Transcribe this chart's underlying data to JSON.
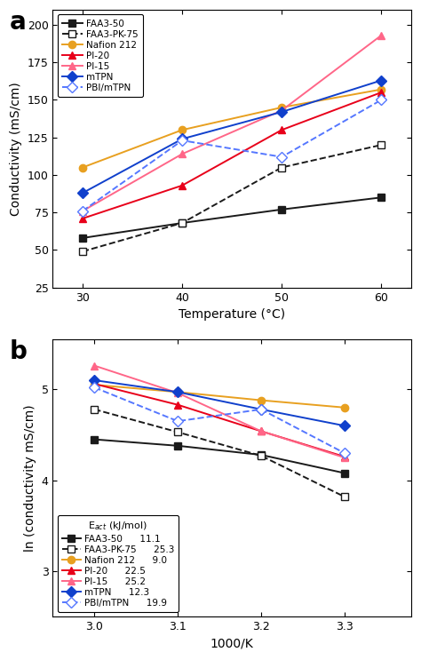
{
  "panel_a": {
    "title": "a",
    "xlabel": "Temperature (°C)",
    "ylabel": "Conductivity (mS/cm)",
    "xlim": [
      27,
      63
    ],
    "ylim": [
      25,
      210
    ],
    "xticks": [
      30,
      40,
      50,
      60
    ],
    "yticks": [
      25,
      50,
      75,
      100,
      125,
      150,
      175,
      200
    ],
    "series": [
      {
        "label": "FAA3-50",
        "color": "#1a1a1a",
        "marker": "s",
        "marker_fill": "#1a1a1a",
        "linestyle": "-",
        "x": [
          30,
          40,
          50,
          60
        ],
        "y": [
          58,
          68,
          77,
          85
        ]
      },
      {
        "label": "FAA3-PK-75",
        "color": "#1a1a1a",
        "marker": "s",
        "marker_fill": "white",
        "linestyle": "--",
        "x": [
          30,
          40,
          50,
          60
        ],
        "y": [
          49,
          68,
          105,
          120
        ]
      },
      {
        "label": "Nafion 212",
        "color": "#E8A020",
        "marker": "o",
        "marker_fill": "#E8A020",
        "linestyle": "-",
        "x": [
          30,
          40,
          50,
          60
        ],
        "y": [
          105,
          130,
          145,
          157
        ]
      },
      {
        "label": "PI-20",
        "color": "#E8001A",
        "marker": "^",
        "marker_fill": "#E8001A",
        "linestyle": "-",
        "x": [
          30,
          40,
          50,
          60
        ],
        "y": [
          71,
          93,
          130,
          155
        ]
      },
      {
        "label": "PI-15",
        "color": "#FF6688",
        "marker": "^",
        "marker_fill": "#FF6688",
        "linestyle": "-",
        "x": [
          30,
          40,
          50,
          60
        ],
        "y": [
          76,
          114,
          143,
          193
        ]
      },
      {
        "label": "mTPN",
        "color": "#1040CC",
        "marker": "D",
        "marker_fill": "#1040CC",
        "linestyle": "-",
        "x": [
          30,
          40,
          50,
          60
        ],
        "y": [
          88,
          124,
          142,
          163
        ]
      },
      {
        "label": "PBI/mTPN",
        "color": "#5577FF",
        "marker": "D",
        "marker_fill": "white",
        "linestyle": "--",
        "x": [
          30,
          40,
          50,
          60
        ],
        "y": [
          76,
          123,
          112,
          150
        ]
      }
    ]
  },
  "panel_b": {
    "title": "b",
    "xlabel": "1000/K",
    "ylabel": "ln (conductivity mS/cm)",
    "xlim": [
      2.95,
      3.38
    ],
    "ylim": [
      2.5,
      5.55
    ],
    "xticks": [
      3.0,
      3.1,
      3.2,
      3.3
    ],
    "yticks": [
      3.0,
      4.0,
      5.0
    ],
    "legend_title": "E$_{act}$ (kJ/mol)",
    "series": [
      {
        "label": "FAA3-50",
        "eact": "11.1",
        "color": "#1a1a1a",
        "marker": "s",
        "marker_fill": "#1a1a1a",
        "linestyle": "-",
        "x": [
          3.0,
          3.1,
          3.2,
          3.3
        ],
        "y": [
          4.45,
          4.38,
          4.28,
          4.08
        ]
      },
      {
        "label": "FAA3-PK-75",
        "eact": "25.3",
        "color": "#1a1a1a",
        "marker": "s",
        "marker_fill": "white",
        "linestyle": "--",
        "x": [
          3.0,
          3.1,
          3.2,
          3.3
        ],
        "y": [
          4.78,
          4.53,
          4.27,
          3.82
        ]
      },
      {
        "label": "Nafion 212",
        "eact": "9.0",
        "color": "#E8A020",
        "marker": "o",
        "marker_fill": "#E8A020",
        "linestyle": "-",
        "x": [
          3.0,
          3.1,
          3.2,
          3.3
        ],
        "y": [
          5.05,
          4.97,
          4.88,
          4.8
        ]
      },
      {
        "label": "PI-20",
        "eact": "22.5",
        "color": "#E8001A",
        "marker": "^",
        "marker_fill": "#E8001A",
        "linestyle": "-",
        "x": [
          3.0,
          3.1,
          3.2,
          3.3
        ],
        "y": [
          5.06,
          4.83,
          4.54,
          4.26
        ]
      },
      {
        "label": "PI-15",
        "eact": "25.2",
        "color": "#FF6688",
        "marker": "^",
        "marker_fill": "#FF6688",
        "linestyle": "-",
        "x": [
          3.0,
          3.1,
          3.2,
          3.3
        ],
        "y": [
          5.26,
          4.96,
          4.54,
          4.25
        ]
      },
      {
        "label": "mTPN",
        "eact": "12.3",
        "color": "#1040CC",
        "marker": "D",
        "marker_fill": "#1040CC",
        "linestyle": "-",
        "x": [
          3.0,
          3.1,
          3.2,
          3.3
        ],
        "y": [
          5.1,
          4.97,
          4.78,
          4.6
        ]
      },
      {
        "label": "PBI/mTPN",
        "eact": "19.9",
        "color": "#5577FF",
        "marker": "D",
        "marker_fill": "white",
        "linestyle": "--",
        "x": [
          3.0,
          3.1,
          3.2,
          3.3
        ],
        "y": [
          5.02,
          4.65,
          4.78,
          4.3
        ]
      }
    ]
  },
  "fig_width": 4.74,
  "fig_height": 7.43,
  "dpi": 100
}
